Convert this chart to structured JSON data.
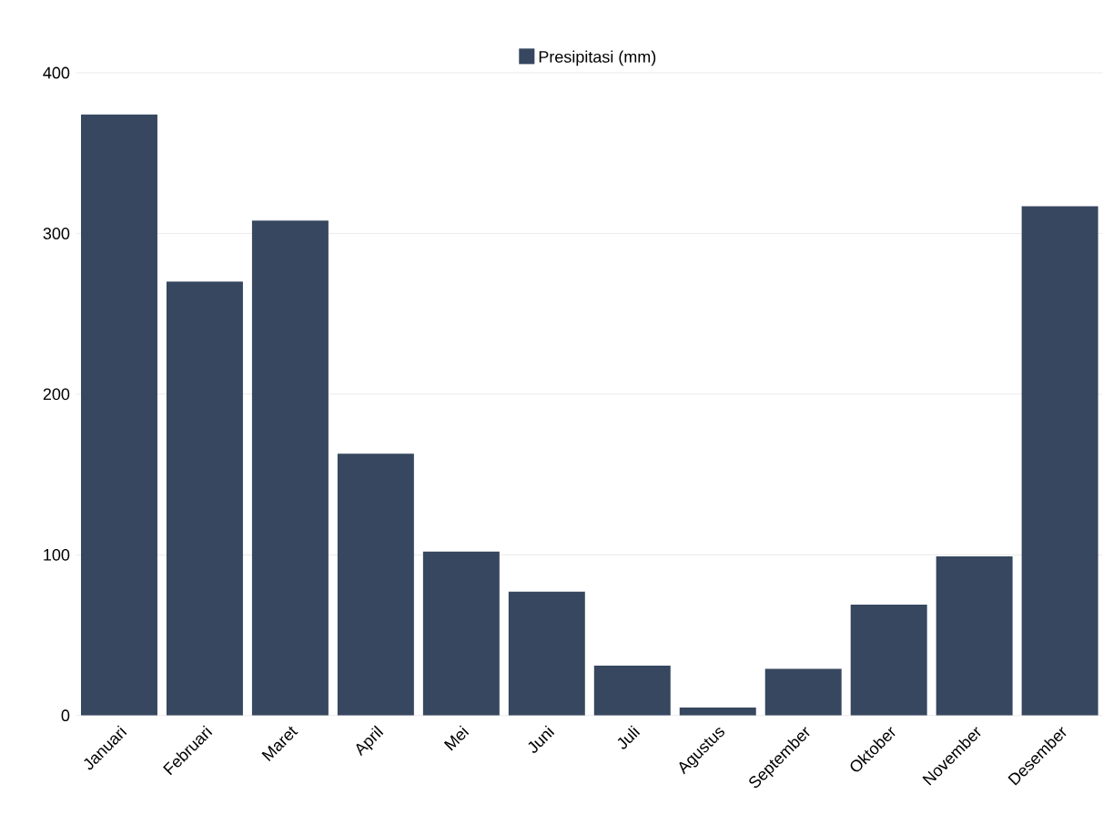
{
  "chart_data": {
    "type": "bar",
    "categories": [
      "Januari",
      "Februari",
      "Maret",
      "April",
      "Mei",
      "Juni",
      "Juli",
      "Agustus",
      "September",
      "Oktober",
      "November",
      "Desember"
    ],
    "series": [
      {
        "name": "Presipitasi (mm)",
        "color": "#36475f",
        "values": [
          374,
          270,
          308,
          163,
          102,
          77,
          31,
          5,
          29,
          69,
          99,
          317
        ]
      }
    ],
    "ylim": [
      0,
      400
    ],
    "yticks": [
      0,
      100,
      200,
      300,
      400
    ],
    "grid": "y",
    "legend": "top"
  }
}
